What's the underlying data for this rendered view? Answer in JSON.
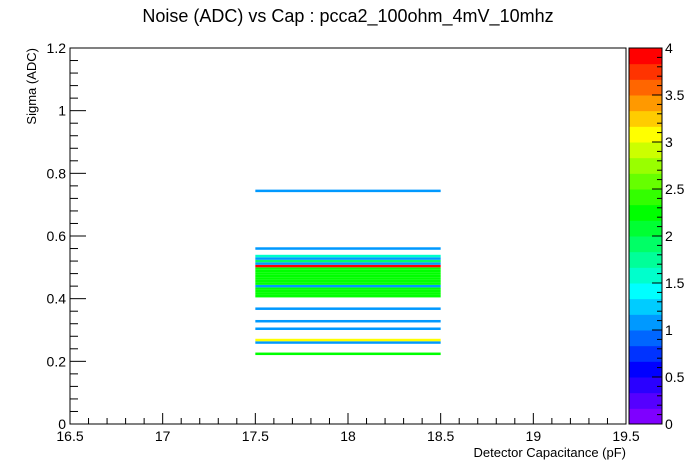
{
  "chart_data": {
    "type": "heatmap",
    "title": "Noise (ADC) vs Cap : pcca2_100ohm_4mV_10mhz",
    "xlabel": "Detector Capacitance (pF)",
    "ylabel": "Sigma (ADC)",
    "xlim": [
      16.5,
      19.5
    ],
    "ylim": [
      0,
      1.2
    ],
    "x_ticks": [
      "16.5",
      "17",
      "17.5",
      "18",
      "18.5",
      "19",
      "19.5"
    ],
    "y_ticks": [
      "0",
      "0.2",
      "0.4",
      "0.6",
      "0.8",
      "1",
      "1.2"
    ],
    "colorbar": {
      "min": 0,
      "max": 4,
      "ticks": [
        "0",
        "0.5",
        "1",
        "1.5",
        "2",
        "2.5",
        "3",
        "3.5",
        "4"
      ],
      "colors": [
        "#7f00ff",
        "#5500ff",
        "#2a00ff",
        "#0000ff",
        "#0033ff",
        "#0066ff",
        "#0099ff",
        "#00ccff",
        "#00ffff",
        "#00ffcc",
        "#00ff99",
        "#00ff66",
        "#00ff33",
        "#00ff00",
        "#33ff00",
        "#66ff00",
        "#99ff00",
        "#ccff00",
        "#ffff00",
        "#ffcc00",
        "#ff9900",
        "#ff6600",
        "#ff3300",
        "#ff0000"
      ]
    },
    "cells": [
      {
        "x": [
          17.5,
          18.5
        ],
        "y": [
          0.22,
          0.228
        ],
        "z": 2.2
      },
      {
        "x": [
          17.5,
          18.5
        ],
        "y": [
          0.256,
          0.264
        ],
        "z": 1.1
      },
      {
        "x": [
          17.5,
          18.5
        ],
        "y": [
          0.264,
          0.272
        ],
        "z": 3.0
      },
      {
        "x": [
          17.5,
          18.5
        ],
        "y": [
          0.3,
          0.308
        ],
        "z": 1.1
      },
      {
        "x": [
          17.5,
          18.5
        ],
        "y": [
          0.324,
          0.332
        ],
        "z": 1.1
      },
      {
        "x": [
          17.5,
          18.5
        ],
        "y": [
          0.364,
          0.372
        ],
        "z": 1.1
      },
      {
        "x": [
          17.5,
          18.5
        ],
        "y": [
          0.404,
          0.412
        ],
        "z": 2.2
      },
      {
        "x": [
          17.5,
          18.5
        ],
        "y": [
          0.412,
          0.42
        ],
        "z": 2.2
      },
      {
        "x": [
          17.5,
          18.5
        ],
        "y": [
          0.42,
          0.428
        ],
        "z": 2.2
      },
      {
        "x": [
          17.5,
          18.5
        ],
        "y": [
          0.428,
          0.436
        ],
        "z": 2.2
      },
      {
        "x": [
          17.5,
          18.5
        ],
        "y": [
          0.436,
          0.444
        ],
        "z": 1.1
      },
      {
        "x": [
          17.5,
          18.5
        ],
        "y": [
          0.444,
          0.452
        ],
        "z": 2.2
      },
      {
        "x": [
          17.5,
          18.5
        ],
        "y": [
          0.452,
          0.46
        ],
        "z": 2.2
      },
      {
        "x": [
          17.5,
          18.5
        ],
        "y": [
          0.46,
          0.468
        ],
        "z": 2.2
      },
      {
        "x": [
          17.5,
          18.5
        ],
        "y": [
          0.468,
          0.476
        ],
        "z": 2.2
      },
      {
        "x": [
          17.5,
          18.5
        ],
        "y": [
          0.476,
          0.484
        ],
        "z": 2.2
      },
      {
        "x": [
          17.5,
          18.5
        ],
        "y": [
          0.484,
          0.492
        ],
        "z": 2.2
      },
      {
        "x": [
          17.5,
          18.5
        ],
        "y": [
          0.492,
          0.5
        ],
        "z": 2.2
      },
      {
        "x": [
          17.5,
          18.5
        ],
        "y": [
          0.5,
          0.508
        ],
        "z": 4.0
      },
      {
        "x": [
          17.5,
          18.5
        ],
        "y": [
          0.508,
          0.516
        ],
        "z": 1.1
      },
      {
        "x": [
          17.5,
          18.5
        ],
        "y": [
          0.516,
          0.524
        ],
        "z": 1.9
      },
      {
        "x": [
          17.5,
          18.5
        ],
        "y": [
          0.524,
          0.532
        ],
        "z": 1.1
      },
      {
        "x": [
          17.5,
          18.5
        ],
        "y": [
          0.532,
          0.54
        ],
        "z": 1.6
      },
      {
        "x": [
          17.5,
          18.5
        ],
        "y": [
          0.556,
          0.564
        ],
        "z": 1.1
      },
      {
        "x": [
          17.5,
          18.5
        ],
        "y": [
          0.74,
          0.748
        ],
        "z": 1.1
      }
    ]
  }
}
